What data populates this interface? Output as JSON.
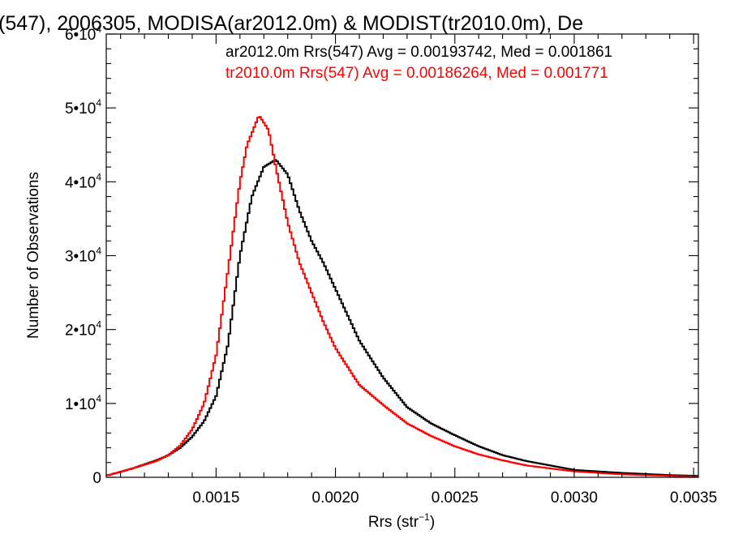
{
  "chart_data": {
    "type": "line",
    "title": "(547), 2006305, MODISA(ar2012.0m) & MODIST(tr2010.0m), De",
    "xlabel": "Rrs (str",
    "xlabel_sup": "−1",
    "xlabel_close": ")",
    "ylabel": "Number of Observations",
    "xlim": [
      0.00104,
      0.00352
    ],
    "ylim": [
      0,
      60000
    ],
    "x_ticks": [
      {
        "value": 0.0015,
        "label": "0.0015"
      },
      {
        "value": 0.002,
        "label": "0.0020"
      },
      {
        "value": 0.0025,
        "label": "0.0025"
      },
      {
        "value": 0.003,
        "label": "0.0030"
      },
      {
        "value": 0.0035,
        "label": "0.0035"
      }
    ],
    "y_ticks": [
      {
        "value": 0,
        "mant": "0",
        "exp": ""
      },
      {
        "value": 10000,
        "mant": "1•10",
        "exp": "4"
      },
      {
        "value": 20000,
        "mant": "2•10",
        "exp": "4"
      },
      {
        "value": 30000,
        "mant": "3•10",
        "exp": "4"
      },
      {
        "value": 40000,
        "mant": "4•10",
        "exp": "4"
      },
      {
        "value": 50000,
        "mant": "5•10",
        "exp": "4"
      },
      {
        "value": 60000,
        "mant": "6•10",
        "exp": "4"
      }
    ],
    "style": "histogram-step",
    "series": [
      {
        "name": "ar2012.0m",
        "color": "#000000",
        "legend_text": "ar2012.0m Rrs(547) Avg = 0.00193742, Med = 0.001861",
        "x": [
          0.00105,
          0.00115,
          0.00125,
          0.0013,
          0.00135,
          0.0014,
          0.00145,
          0.0015,
          0.00155,
          0.0016,
          0.00165,
          0.0017,
          0.00175,
          0.0018,
          0.00185,
          0.0019,
          0.00195,
          0.002,
          0.00205,
          0.0021,
          0.0022,
          0.0023,
          0.0024,
          0.0025,
          0.0026,
          0.0027,
          0.0028,
          0.003,
          0.0032,
          0.0034,
          0.00352
        ],
        "y": [
          300,
          1200,
          2300,
          3000,
          4000,
          5500,
          7600,
          11000,
          18000,
          30000,
          38000,
          42000,
          43000,
          41000,
          36000,
          32000,
          29000,
          25500,
          22000,
          18500,
          13500,
          9500,
          7300,
          5700,
          4200,
          3000,
          2200,
          1000,
          600,
          300,
          200
        ]
      },
      {
        "name": "tr2010.0m",
        "color": "#ff0000",
        "legend_text": "tr2010.0m Rrs(547) Avg = 0.00186264, Med = 0.001771",
        "x": [
          0.00105,
          0.00115,
          0.00125,
          0.0013,
          0.00135,
          0.0014,
          0.00145,
          0.0015,
          0.00155,
          0.0016,
          0.00163,
          0.00168,
          0.00172,
          0.00175,
          0.0018,
          0.00185,
          0.0019,
          0.00195,
          0.002,
          0.00205,
          0.0021,
          0.0022,
          0.0023,
          0.0024,
          0.0025,
          0.0026,
          0.0027,
          0.0028,
          0.003,
          0.0032,
          0.0034,
          0.00352
        ],
        "y": [
          300,
          1200,
          2200,
          3000,
          4300,
          6500,
          10000,
          16500,
          28000,
          40000,
          45000,
          49000,
          47000,
          42000,
          34500,
          29000,
          25000,
          21000,
          17500,
          15000,
          12500,
          9800,
          7300,
          5600,
          4200,
          3100,
          2300,
          1600,
          800,
          400,
          200,
          100
        ]
      }
    ],
    "grid": false
  }
}
